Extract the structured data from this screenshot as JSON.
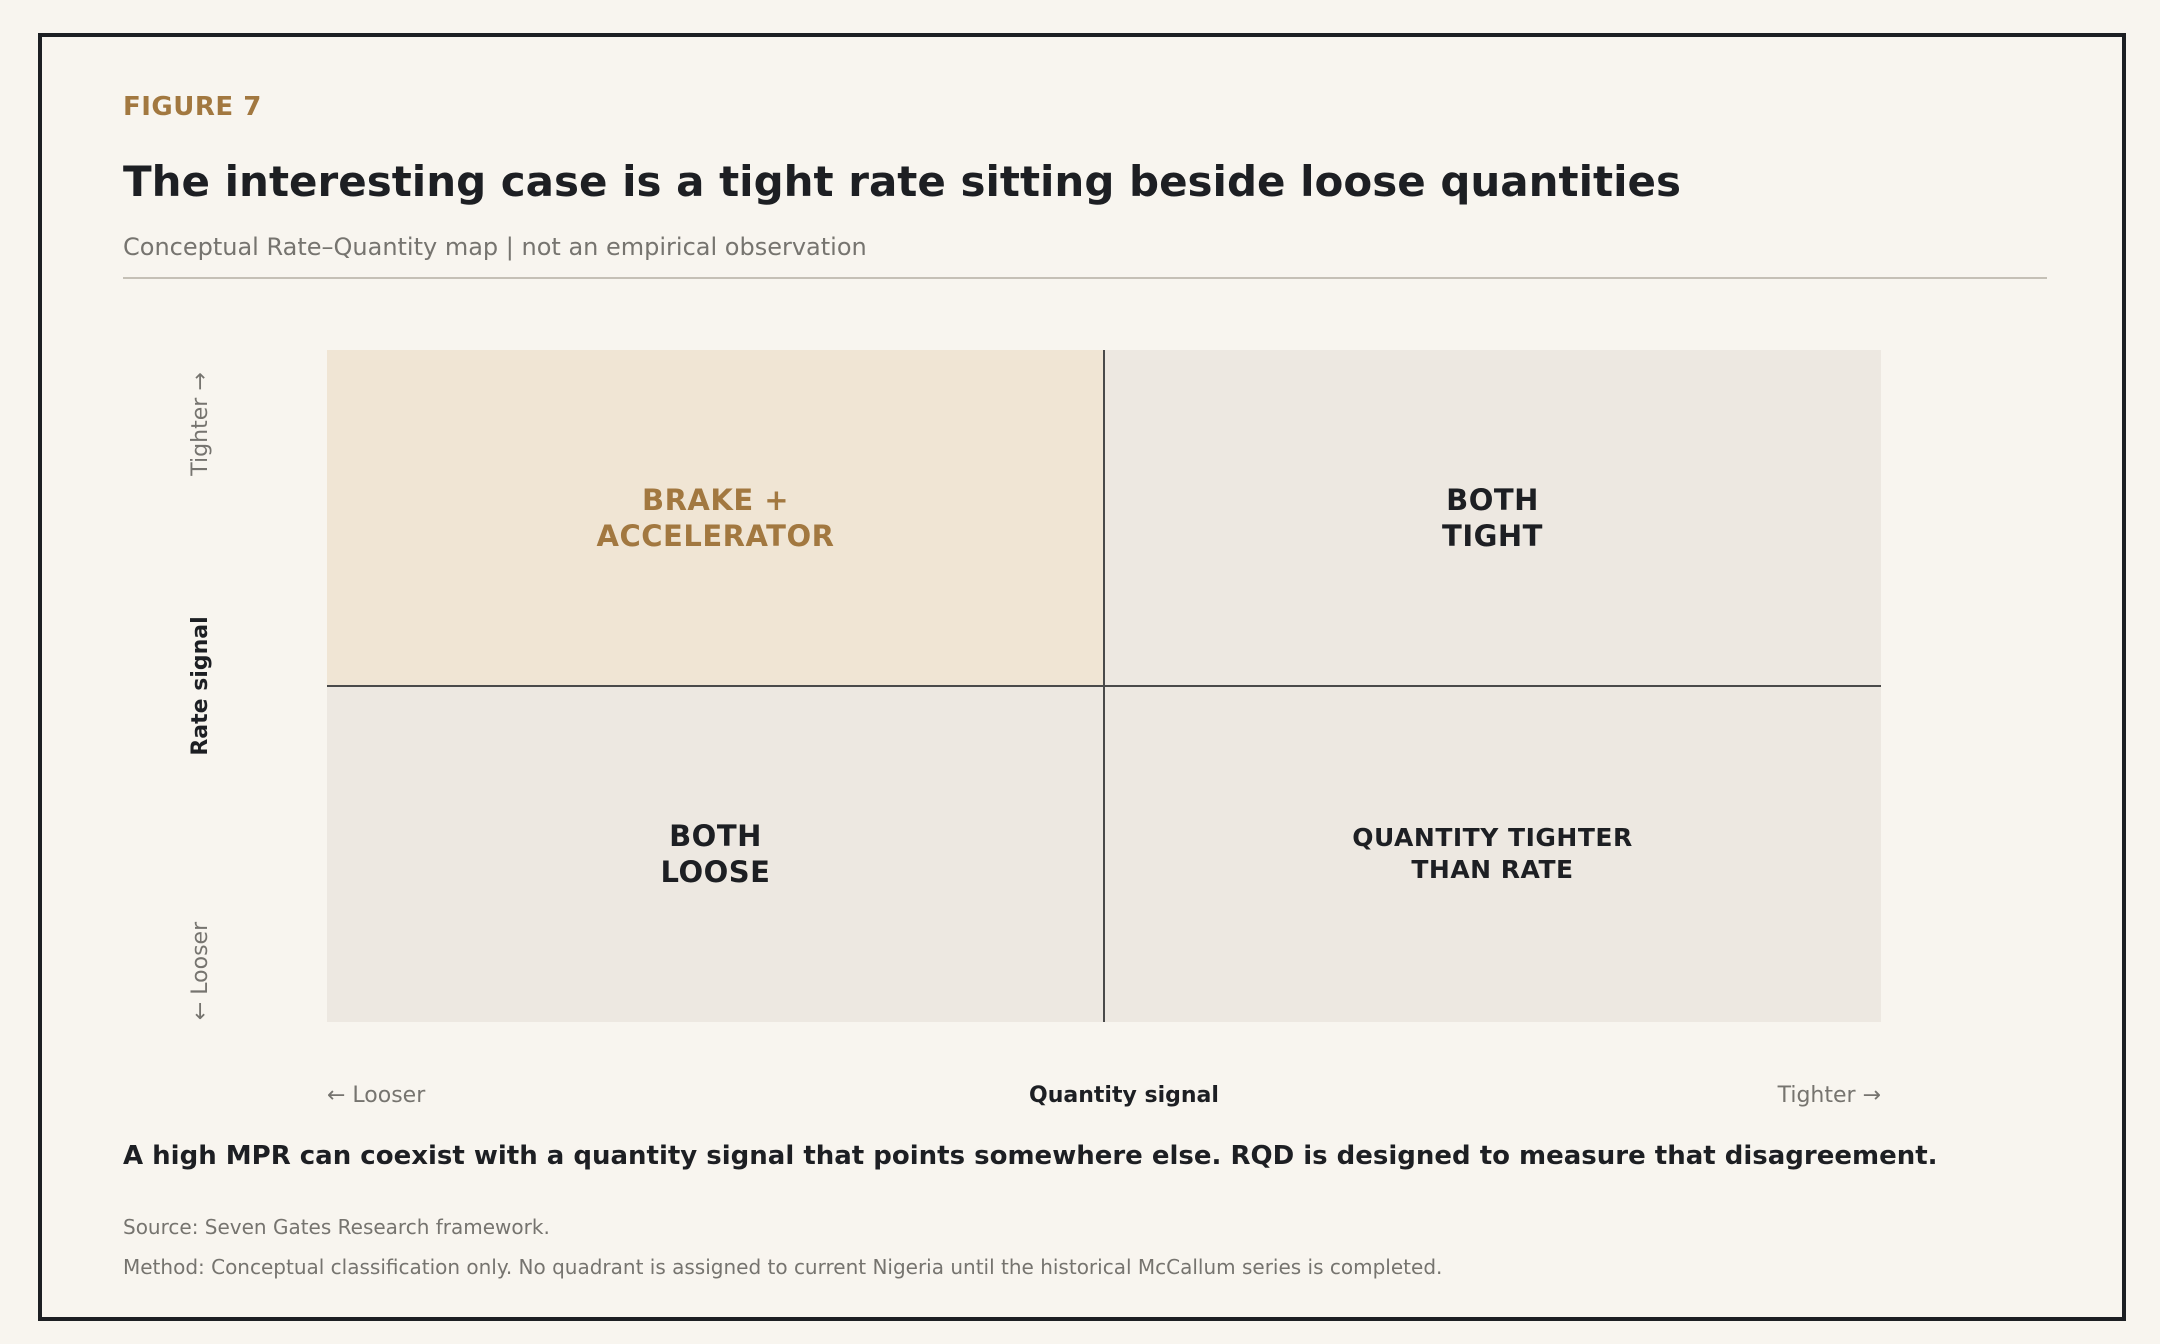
{
  "figure_label": "FIGURE 7",
  "title": "The interesting case is a tight rate sitting beside loose quantities",
  "subtitle": "Conceptual Rate–Quantity map | not an empirical observation",
  "y_axis": {
    "label": "Rate signal",
    "high": "Tighter →",
    "low": "← Looser"
  },
  "x_axis": {
    "label": "Quantity signal",
    "low": "← Looser",
    "high": "Tighter →"
  },
  "quadrants": {
    "top_left": "BRAKE +\nACCELERATOR",
    "top_right": "BOTH\nTIGHT",
    "bottom_left": "BOTH\nLOOSE",
    "bottom_right": "QUANTITY TIGHTER\nTHAN RATE"
  },
  "colors": {
    "accent": "#a27840",
    "highlight_quadrant": "#f0e5d4",
    "quadrant": "#ede8e1",
    "text": "#1d1f23",
    "muted": "#76746f"
  },
  "takeaway": "A high MPR can coexist with a quantity signal that points somewhere else. RQD is designed to measure that disagreement.",
  "source": "Source: Seven Gates Research framework.",
  "method": "Method: Conceptual classification only. No quadrant is assigned to current Nigeria until the historical McCallum series is completed."
}
